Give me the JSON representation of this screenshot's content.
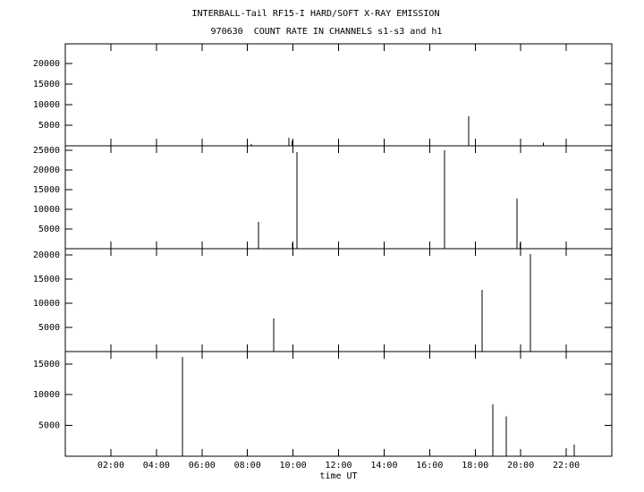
{
  "title": "INTERBALL-Tail RF15-I HARD/SOFT X-RAY EMISSION",
  "subtitle": "970630  COUNT RATE IN CHANNELS s1-s3 and h1",
  "chart_data": [
    {
      "type": "spike",
      "color": "#000000",
      "x": [
        8.17,
        9.82,
        9.95,
        17.71,
        21.0
      ],
      "values": [
        400,
        2000,
        1200,
        7200,
        800
      ],
      "xlim": [
        0,
        24
      ],
      "ylim": [
        0,
        24800
      ],
      "yticks": [
        5000,
        10000,
        15000,
        20000
      ]
    },
    {
      "type": "spike",
      "color": "#000000",
      "x": [
        8.48,
        9.98,
        10.17,
        16.65,
        19.83,
        19.97
      ],
      "values": [
        6800,
        1500,
        24500,
        25000,
        12700,
        1500
      ],
      "xlim": [
        0,
        24
      ],
      "ylim": [
        0,
        26100
      ],
      "yticks": [
        5000,
        10000,
        15000,
        20000,
        25000
      ]
    },
    {
      "type": "spike",
      "color": "#000000",
      "x": [
        9.15,
        18.3,
        20.42
      ],
      "values": [
        6850,
        12800,
        20200
      ],
      "xlim": [
        0,
        24
      ],
      "ylim": [
        0,
        21300
      ],
      "yticks": [
        5000,
        10000,
        15000,
        20000
      ]
    },
    {
      "type": "spike",
      "color": "#000000",
      "x": [
        5.15,
        18.77,
        19.36,
        22.0,
        22.35
      ],
      "values": [
        16100,
        8400,
        6500,
        1300,
        1900
      ],
      "xlim": [
        0,
        24
      ],
      "ylim": [
        0,
        17000
      ],
      "yticks": [
        5000,
        10000,
        15000
      ],
      "x_label": "time UT",
      "xticks": [
        {
          "value": 2,
          "label": "02:00"
        },
        {
          "value": 4,
          "label": "04:00"
        },
        {
          "value": 6,
          "label": "06:00"
        },
        {
          "value": 8,
          "label": "08:00"
        },
        {
          "value": 10,
          "label": "10:00"
        },
        {
          "value": 12,
          "label": "12:00"
        },
        {
          "value": 14,
          "label": "14:00"
        },
        {
          "value": 16,
          "label": "16:00"
        },
        {
          "value": 18,
          "label": "18:00"
        },
        {
          "value": 20,
          "label": "20:00"
        },
        {
          "value": 22,
          "label": "22:00"
        }
      ]
    }
  ]
}
